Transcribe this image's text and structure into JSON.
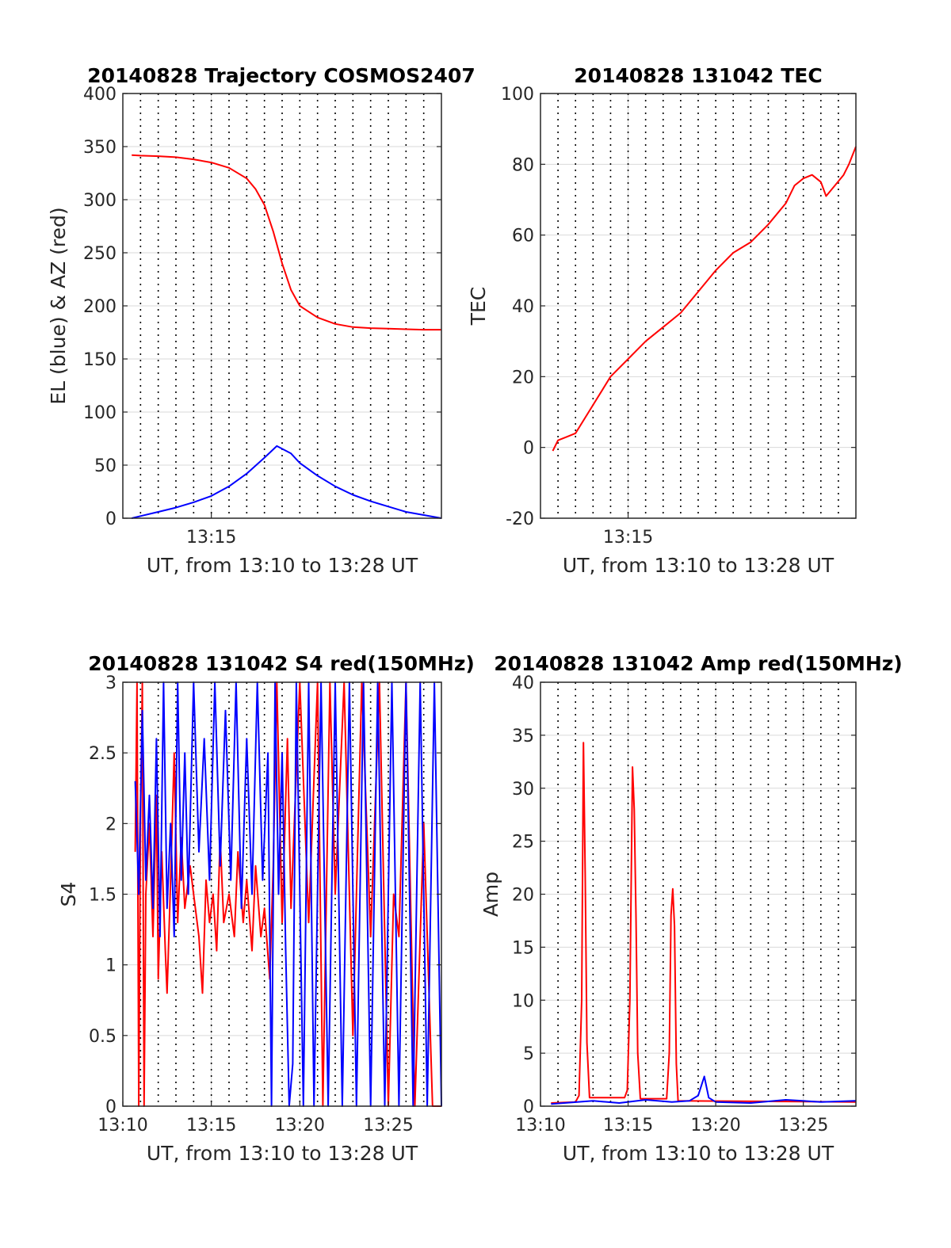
{
  "figure": {
    "background": "#ffffff",
    "colors": {
      "red_series": "#ff0000",
      "blue_series": "#0000ff",
      "grid": "#d9d9d9",
      "vgrid": "#000000",
      "axis": "#262626"
    }
  },
  "chart_data": [
    {
      "id": "trajectory",
      "type": "line",
      "title": "20140828 Trajectory COSMOS2407",
      "xlabel": "UT, from 13:10 to 13:28 UT",
      "ylabel": "EL (blue) & AZ (red)",
      "xlim": [
        "13:10",
        "13:28"
      ],
      "ylim": [
        0,
        400
      ],
      "x_ticks": [
        "13:15"
      ],
      "y_ticks": [
        "0",
        "50",
        "100",
        "150",
        "200",
        "250",
        "300",
        "350",
        "400"
      ],
      "grid": true,
      "x_unit": "minutes after 13:10 UT",
      "series": [
        {
          "color": "#ff0000",
          "points": [
            [
              0.5,
              342
            ],
            [
              1,
              341.5
            ],
            [
              2,
              341
            ],
            [
              3,
              340
            ],
            [
              4,
              338
            ],
            [
              5,
              335
            ],
            [
              6,
              330
            ],
            [
              7,
              320
            ],
            [
              7.5,
              310
            ],
            [
              8,
              295
            ],
            [
              8.5,
              270
            ],
            [
              9,
              240
            ],
            [
              9.5,
              215
            ],
            [
              10,
              200
            ],
            [
              11,
              189
            ],
            [
              12,
              183
            ],
            [
              13,
              180
            ],
            [
              14,
              179
            ],
            [
              15,
              178.5
            ],
            [
              16,
              178
            ],
            [
              17,
              177.5
            ],
            [
              18,
              177.5
            ]
          ]
        },
        {
          "color": "#0000ff",
          "points": [
            [
              0.5,
              0
            ],
            [
              1,
              2
            ],
            [
              2,
              6
            ],
            [
              3,
              10
            ],
            [
              4,
              15
            ],
            [
              5,
              21
            ],
            [
              6,
              30
            ],
            [
              7,
              42
            ],
            [
              8,
              57
            ],
            [
              8.7,
              68
            ],
            [
              9.5,
              61
            ],
            [
              10,
              52
            ],
            [
              11,
              40
            ],
            [
              12,
              30
            ],
            [
              13,
              22
            ],
            [
              14,
              16
            ],
            [
              15,
              11
            ],
            [
              16,
              6
            ],
            [
              17,
              3
            ],
            [
              18,
              0
            ]
          ]
        }
      ]
    },
    {
      "id": "tec",
      "type": "line",
      "title": "20140828 131042 TEC",
      "xlabel": "UT, from 13:10 to 13:28 UT",
      "ylabel": "TEC",
      "xlim": [
        "13:10",
        "13:28"
      ],
      "ylim": [
        -20,
        100
      ],
      "x_ticks": [
        "13:15"
      ],
      "y_ticks": [
        "-20",
        "0",
        "20",
        "40",
        "60",
        "80",
        "100"
      ],
      "grid": true,
      "x_unit": "minutes after 13:10 UT",
      "series": [
        {
          "color": "#ff0000",
          "points": [
            [
              0.7,
              -1
            ],
            [
              1,
              2
            ],
            [
              1.5,
              3
            ],
            [
              2,
              4
            ],
            [
              3,
              12
            ],
            [
              3.5,
              16
            ],
            [
              4,
              20
            ],
            [
              5,
              25
            ],
            [
              6,
              30
            ],
            [
              7,
              34
            ],
            [
              8,
              38
            ],
            [
              9,
              44
            ],
            [
              10,
              50
            ],
            [
              11,
              55
            ],
            [
              12,
              58
            ],
            [
              13,
              63
            ],
            [
              14,
              69
            ],
            [
              14.5,
              74
            ],
            [
              15,
              76
            ],
            [
              15.5,
              77
            ],
            [
              16,
              75
            ],
            [
              16.3,
              71
            ],
            [
              16.8,
              74
            ],
            [
              17.3,
              77
            ],
            [
              17.6,
              80
            ],
            [
              18,
              85
            ]
          ]
        }
      ]
    },
    {
      "id": "s4",
      "type": "line",
      "title": "20140828 131042 S4 red(150MHz)",
      "xlabel": "UT, from 13:10 to 13:28 UT",
      "ylabel": "S4",
      "xlim": [
        "13:10",
        "13:28"
      ],
      "ylim": [
        0,
        3
      ],
      "x_ticks": [
        "13:10",
        "13:15",
        "13:20",
        "13:25"
      ],
      "y_ticks": [
        "0",
        "0.5",
        "1",
        "1.5",
        "2",
        "2.5",
        "3"
      ],
      "grid": true,
      "x_unit": "minutes after 13:10 UT",
      "series": [
        {
          "color": "#ff0000",
          "points": [
            [
              0.7,
              1.8
            ],
            [
              0.8,
              3
            ],
            [
              0.9,
              0
            ],
            [
              1,
              2
            ],
            [
              1.1,
              3
            ],
            [
              1.2,
              0
            ],
            [
              1.3,
              1.5
            ],
            [
              1.5,
              2
            ],
            [
              1.7,
              1.2
            ],
            [
              1.9,
              2.2
            ],
            [
              2,
              0.9
            ],
            [
              2.2,
              1.8
            ],
            [
              2.4,
              1.1
            ],
            [
              2.5,
              0.8
            ],
            [
              2.7,
              1.6
            ],
            [
              2.9,
              2.5
            ],
            [
              3.1,
              1.3
            ],
            [
              3.3,
              1.9
            ],
            [
              3.5,
              1.4
            ],
            [
              3.8,
              1.7
            ],
            [
              4,
              1.5
            ],
            [
              4.3,
              1.2
            ],
            [
              4.5,
              0.8
            ],
            [
              4.7,
              1.6
            ],
            [
              4.9,
              1.3
            ],
            [
              5.1,
              1.5
            ],
            [
              5.3,
              1.1
            ],
            [
              5.5,
              1.9
            ],
            [
              5.7,
              1.3
            ],
            [
              6,
              1.5
            ],
            [
              6.3,
              1.2
            ],
            [
              6.5,
              1.8
            ],
            [
              6.8,
              1.3
            ],
            [
              7,
              1.6
            ],
            [
              7.3,
              1.1
            ],
            [
              7.5,
              1.7
            ],
            [
              7.8,
              1.2
            ],
            [
              8,
              1.4
            ],
            [
              8.3,
              0.9
            ],
            [
              8.5,
              1.7
            ],
            [
              8.7,
              3
            ],
            [
              9,
              1.3
            ],
            [
              9.3,
              2.6
            ],
            [
              9.5,
              1.4
            ],
            [
              10,
              3
            ],
            [
              10.5,
              1.3
            ],
            [
              11,
              3
            ],
            [
              11.3,
              0
            ],
            [
              11.7,
              3
            ],
            [
              12,
              1.5
            ],
            [
              12.5,
              3
            ],
            [
              13,
              0.5
            ],
            [
              13.5,
              3
            ],
            [
              14,
              1.2
            ],
            [
              14.5,
              3
            ],
            [
              15,
              0
            ],
            [
              15.3,
              1.5
            ],
            [
              15.6,
              1.2
            ],
            [
              16,
              3
            ],
            [
              16.5,
              0
            ],
            [
              17,
              2
            ],
            [
              17.5,
              0
            ],
            [
              18,
              0
            ]
          ]
        },
        {
          "color": "#0000ff",
          "points": [
            [
              0.7,
              2.3
            ],
            [
              0.9,
              1.5
            ],
            [
              1.1,
              2.8
            ],
            [
              1.3,
              1.6
            ],
            [
              1.5,
              2.2
            ],
            [
              1.7,
              1.4
            ],
            [
              1.9,
              2.6
            ],
            [
              2.1,
              1.2
            ],
            [
              2.3,
              3
            ],
            [
              2.5,
              1.4
            ],
            [
              2.7,
              2
            ],
            [
              2.9,
              1.2
            ],
            [
              3.1,
              3
            ],
            [
              3.3,
              1.6
            ],
            [
              3.5,
              2.5
            ],
            [
              3.7,
              1.5
            ],
            [
              4,
              3
            ],
            [
              4.3,
              1.8
            ],
            [
              4.6,
              2.6
            ],
            [
              4.9,
              1.6
            ],
            [
              5.2,
              3
            ],
            [
              5.5,
              1.7
            ],
            [
              5.8,
              2.8
            ],
            [
              6.1,
              1.6
            ],
            [
              6.4,
              3
            ],
            [
              6.7,
              1.4
            ],
            [
              7,
              2.6
            ],
            [
              7.3,
              1.5
            ],
            [
              7.6,
              3
            ],
            [
              7.9,
              1.6
            ],
            [
              8.2,
              2.5
            ],
            [
              8.4,
              0
            ],
            [
              8.6,
              3
            ],
            [
              8.8,
              1.5
            ],
            [
              9,
              2.5
            ],
            [
              9.2,
              1.1
            ],
            [
              9.4,
              0
            ],
            [
              9.6,
              0.3
            ],
            [
              9.8,
              3
            ],
            [
              10.2,
              0
            ],
            [
              10.5,
              3
            ],
            [
              10.8,
              0
            ],
            [
              11.2,
              3
            ],
            [
              11.6,
              0
            ],
            [
              12,
              3
            ],
            [
              12.4,
              0
            ],
            [
              12.8,
              3
            ],
            [
              13.2,
              0
            ],
            [
              13.6,
              3
            ],
            [
              14,
              0
            ],
            [
              14.4,
              3
            ],
            [
              14.8,
              0
            ],
            [
              15.2,
              3
            ],
            [
              15.6,
              0
            ],
            [
              16,
              3
            ],
            [
              16.4,
              0
            ],
            [
              16.8,
              3
            ],
            [
              17.2,
              0
            ],
            [
              17.6,
              3
            ],
            [
              18,
              0
            ]
          ]
        }
      ]
    },
    {
      "id": "amp",
      "type": "line",
      "title": "20140828 131042 Amp red(150MHz)",
      "xlabel": "UT, from 13:10 to 13:28 UT",
      "ylabel": "Amp",
      "xlim": [
        "13:10",
        "13:28"
      ],
      "ylim": [
        0,
        40
      ],
      "x_ticks": [
        "13:10",
        "13:15",
        "13:20",
        "13:25"
      ],
      "y_ticks": [
        "0",
        "5",
        "10",
        "15",
        "20",
        "25",
        "30",
        "35",
        "40"
      ],
      "grid": true,
      "x_unit": "minutes after 13:10 UT",
      "series": [
        {
          "color": "#ff0000",
          "points": [
            [
              0.6,
              0.3
            ],
            [
              2,
              0.4
            ],
            [
              2.2,
              1
            ],
            [
              2.35,
              10
            ],
            [
              2.45,
              34.3
            ],
            [
              2.55,
              22
            ],
            [
              2.65,
              6
            ],
            [
              2.8,
              0.8
            ],
            [
              4.8,
              0.8
            ],
            [
              4.95,
              1.5
            ],
            [
              5.1,
              10
            ],
            [
              5.25,
              32
            ],
            [
              5.35,
              28
            ],
            [
              5.45,
              18
            ],
            [
              5.55,
              5
            ],
            [
              5.7,
              0.7
            ],
            [
              7.2,
              0.7
            ],
            [
              7.35,
              5
            ],
            [
              7.45,
              18
            ],
            [
              7.55,
              20.5
            ],
            [
              7.65,
              17
            ],
            [
              7.75,
              4
            ],
            [
              7.85,
              0.5
            ],
            [
              18,
              0.4
            ]
          ]
        },
        {
          "color": "#0000ff",
          "points": [
            [
              0.6,
              0.2
            ],
            [
              3,
              0.5
            ],
            [
              4.5,
              0.3
            ],
            [
              6,
              0.6
            ],
            [
              7.5,
              0.4
            ],
            [
              8.5,
              0.5
            ],
            [
              9,
              1
            ],
            [
              9.35,
              2.8
            ],
            [
              9.6,
              0.8
            ],
            [
              10,
              0.4
            ],
            [
              12,
              0.3
            ],
            [
              14,
              0.6
            ],
            [
              16,
              0.4
            ],
            [
              18,
              0.5
            ]
          ]
        }
      ]
    }
  ]
}
